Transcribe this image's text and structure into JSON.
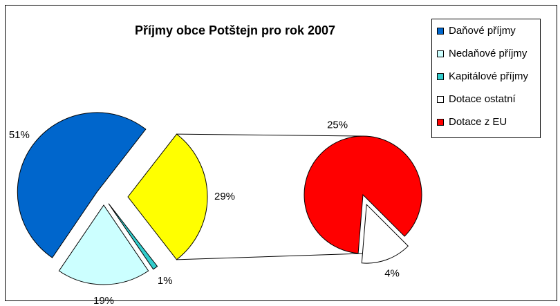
{
  "chart_data": {
    "type": "pie-of-pie",
    "title": "Příjmy obce Potštejn pro rok 2007",
    "main": {
      "categories": [
        "Daňové příjmy",
        "Nedaňové příjmy",
        "Kapitálové příjmy"
      ],
      "values": [
        51,
        19,
        1
      ],
      "value_labels": [
        "51%",
        "19%",
        "1%"
      ],
      "colors": [
        "#0066cc",
        "#ccffff",
        "#33cccc"
      ]
    },
    "combined": {
      "value": 29,
      "value_label": "29%",
      "color": "#ffff00"
    },
    "secondary": {
      "categories": [
        "Dotace ostatní",
        "Dotace z EU"
      ],
      "values": [
        4,
        25
      ],
      "value_labels": [
        "4%",
        "25%"
      ],
      "colors": [
        "#ffffff",
        "#ff0000"
      ]
    },
    "legend": "right"
  }
}
